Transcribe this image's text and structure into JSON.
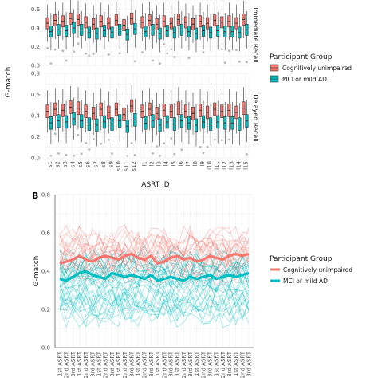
{
  "panel_a": {
    "y_label": "G-match",
    "x_label": "ASRT ID",
    "strips": [
      "Immediate Recall",
      "Delayed Recall"
    ],
    "y_ticks": [
      "0.0",
      "0.2",
      "0.4",
      "0.6",
      "0.8"
    ],
    "legend": {
      "title": "Participant Group",
      "items": [
        {
          "label": "Cognitively unimpaired",
          "color": "#F8766D"
        },
        {
          "label": "MCI or mild AD",
          "color": "#00BFC4"
        }
      ]
    }
  },
  "panel_b": {
    "tag": "B",
    "y_label": "G-match",
    "y_ticks": [
      "0.0",
      "0.2",
      "0.4",
      "0.6",
      "0.8"
    ],
    "legend": {
      "title": "Participant Group",
      "items": [
        {
          "label": "Cognitively unimpaired",
          "color": "#F8766D"
        },
        {
          "label": "MCI or mild AD",
          "color": "#00BFC4"
        }
      ]
    }
  },
  "chart_data": [
    {
      "type": "box",
      "panel": "A",
      "facet_rows": [
        "Immediate Recall",
        "Delayed Recall"
      ],
      "facet_cols": [
        "s",
        "l"
      ],
      "categories_left": [
        "s1",
        "s2",
        "s3",
        "s4",
        "s5",
        "s6",
        "s7",
        "s8",
        "s9",
        "s10",
        "s11",
        "s12"
      ],
      "categories_right": [
        "l1",
        "l2",
        "l3",
        "l4",
        "l5",
        "l6",
        "l7",
        "l8",
        "l9",
        "l10",
        "l11",
        "l12",
        "l13",
        "l14",
        "l15"
      ],
      "ylim": [
        0,
        0.8
      ],
      "series": [
        {
          "name": "Cognitively unimpaired",
          "color": "#F8766D",
          "immediate_medians_left": [
            0.45,
            0.48,
            0.47,
            0.5,
            0.49,
            0.46,
            0.44,
            0.47,
            0.45,
            0.48,
            0.43,
            0.5
          ],
          "immediate_medians_right": [
            0.46,
            0.48,
            0.44,
            0.47,
            0.45,
            0.49,
            0.46,
            0.44,
            0.47,
            0.45,
            0.48,
            0.46,
            0.47,
            0.45,
            0.49
          ],
          "delayed_medians_left": [
            0.44,
            0.46,
            0.45,
            0.48,
            0.47,
            0.44,
            0.42,
            0.46,
            0.43,
            0.46,
            0.41,
            0.49
          ],
          "delayed_medians_right": [
            0.44,
            0.46,
            0.42,
            0.45,
            0.44,
            0.47,
            0.44,
            0.42,
            0.45,
            0.43,
            0.46,
            0.44,
            0.45,
            0.43,
            0.47
          ]
        },
        {
          "name": "MCI or mild AD",
          "color": "#00BFC4",
          "immediate_medians_left": [
            0.36,
            0.38,
            0.37,
            0.4,
            0.38,
            0.35,
            0.34,
            0.37,
            0.35,
            0.38,
            0.33,
            0.39
          ],
          "immediate_medians_right": [
            0.36,
            0.38,
            0.34,
            0.37,
            0.35,
            0.38,
            0.36,
            0.34,
            0.37,
            0.35,
            0.37,
            0.36,
            0.36,
            0.35,
            0.38
          ],
          "delayed_medians_left": [
            0.33,
            0.35,
            0.34,
            0.37,
            0.35,
            0.32,
            0.31,
            0.34,
            0.32,
            0.35,
            0.3,
            0.36
          ],
          "delayed_medians_right": [
            0.33,
            0.35,
            0.31,
            0.34,
            0.32,
            0.35,
            0.33,
            0.31,
            0.34,
            0.32,
            0.34,
            0.33,
            0.33,
            0.32,
            0.35
          ]
        }
      ]
    },
    {
      "type": "line",
      "panel": "B",
      "x": [
        "1st ASRT",
        "2nd ASRT",
        "3rd ASRT",
        "1st ASRT",
        "2nd ASRT",
        "3rd ASRT",
        "1st ASRT",
        "2nd ASRT",
        "3rd ASRT",
        "1st ASRT",
        "2nd ASRT",
        "3rd ASRT",
        "1st ASRT",
        "2nd ASRT",
        "3rd ASRT",
        "1st ASRT",
        "2nd ASRT",
        "3rd ASRT",
        "1st ASRT",
        "2nd ASRT",
        "3rd ASRT",
        "1st ASRT",
        "2nd ASRT",
        "3rd ASRT",
        "1st ASRT",
        "2nd ASRT",
        "3rd ASRT",
        "1st ASRT",
        "2nd ASRT",
        "3rd ASRT"
      ],
      "ylim": [
        0,
        0.8
      ],
      "series": [
        {
          "name": "Cognitively unimpaired",
          "color": "#F8766D",
          "values": [
            0.44,
            0.45,
            0.46,
            0.48,
            0.46,
            0.45,
            0.47,
            0.48,
            0.47,
            0.46,
            0.48,
            0.49,
            0.47,
            0.46,
            0.48,
            0.44,
            0.45,
            0.47,
            0.48,
            0.46,
            0.47,
            0.45,
            0.46,
            0.48,
            0.47,
            0.46,
            0.48,
            0.49,
            0.48,
            0.49
          ]
        },
        {
          "name": "MCI or mild AD",
          "color": "#00BFC4",
          "values": [
            0.36,
            0.35,
            0.37,
            0.39,
            0.4,
            0.38,
            0.37,
            0.36,
            0.39,
            0.38,
            0.37,
            0.38,
            0.37,
            0.36,
            0.38,
            0.35,
            0.36,
            0.37,
            0.36,
            0.35,
            0.37,
            0.36,
            0.37,
            0.38,
            0.36,
            0.37,
            0.38,
            0.37,
            0.38,
            0.39
          ]
        }
      ]
    }
  ]
}
